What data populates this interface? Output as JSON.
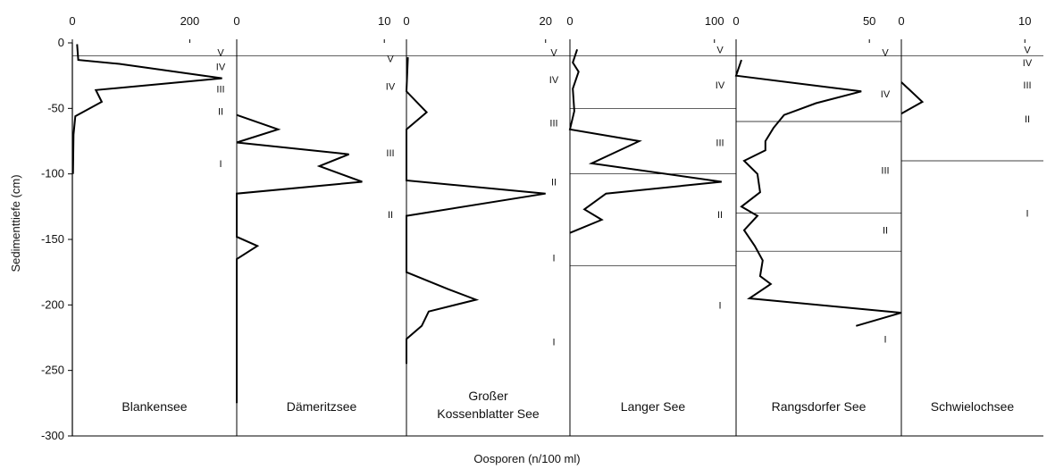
{
  "chart_data": {
    "type": "line",
    "orientation": "depth-profile",
    "xlabel": "Oosporen (n/100 ml)",
    "ylabel": "Sedimenttiefe (cm)",
    "ylim": [
      -300,
      0
    ],
    "yticks": [
      0,
      -50,
      -100,
      -150,
      -200,
      -250,
      -300
    ],
    "grid": false,
    "panels": [
      {
        "name": "Blankensee",
        "xlim": [
          0,
          280
        ],
        "xticks": [
          0,
          200
        ],
        "series": [
          {
            "x": 8,
            "y": -1
          },
          {
            "x": 10,
            "y": -13
          },
          {
            "x": 80,
            "y": -16
          },
          {
            "x": 255,
            "y": -27
          },
          {
            "x": 40,
            "y": -36
          },
          {
            "x": 50,
            "y": -45
          },
          {
            "x": 5,
            "y": -56
          },
          {
            "x": 2,
            "y": -70
          },
          {
            "x": 1,
            "y": -100
          }
        ],
        "boundaries": [
          -10
        ],
        "zones": [
          {
            "label": "V",
            "y": -7
          },
          {
            "label": "IV",
            "y": -18
          },
          {
            "label": "III",
            "y": -35
          },
          {
            "label": "II",
            "y": -52
          },
          {
            "label": "I",
            "y": -92
          }
        ]
      },
      {
        "name": "Dämeritzsee",
        "xlim": [
          0,
          11.5
        ],
        "xticks": [
          0,
          10
        ],
        "series": [
          {
            "x": 0,
            "y": -55
          },
          {
            "x": 2.8,
            "y": -66
          },
          {
            "x": 0,
            "y": -76
          },
          {
            "x": 7.6,
            "y": -85
          },
          {
            "x": 5.6,
            "y": -94
          },
          {
            "x": 8.5,
            "y": -106
          },
          {
            "x": 0,
            "y": -115
          },
          {
            "x": 0,
            "y": -148
          },
          {
            "x": 1.4,
            "y": -155
          },
          {
            "x": 0,
            "y": -165
          },
          {
            "x": 0,
            "y": -275
          }
        ],
        "boundaries": [
          -10
        ],
        "zones": [
          {
            "label": "V",
            "y": -12
          },
          {
            "label": "IV",
            "y": -33
          },
          {
            "label": "III",
            "y": -84
          },
          {
            "label": "II",
            "y": -131
          }
        ]
      },
      {
        "name": "Großer Kossenblatter See",
        "xlim": [
          0,
          23.5
        ],
        "xticks": [
          0,
          20
        ],
        "series": [
          {
            "x": 0.2,
            "y": -11
          },
          {
            "x": 0,
            "y": -37
          },
          {
            "x": 2.9,
            "y": -53
          },
          {
            "x": 0,
            "y": -66
          },
          {
            "x": 0,
            "y": -105
          },
          {
            "x": 20,
            "y": -115
          },
          {
            "x": 0,
            "y": -132
          },
          {
            "x": 0,
            "y": -175
          },
          {
            "x": 6,
            "y": -188
          },
          {
            "x": 10,
            "y": -196
          },
          {
            "x": 3.2,
            "y": -205
          },
          {
            "x": 2.2,
            "y": -216
          },
          {
            "x": 0,
            "y": -226
          },
          {
            "x": 0,
            "y": -245
          }
        ],
        "boundaries": [
          -10
        ],
        "zones": [
          {
            "label": "V",
            "y": -7
          },
          {
            "label": "IV",
            "y": -28
          },
          {
            "label": "III",
            "y": -61
          },
          {
            "label": "II",
            "y": -106
          },
          {
            "label": "I",
            "y": -164
          },
          {
            "label": "I",
            "y": -228
          }
        ]
      },
      {
        "name": "Langer See",
        "xlim": [
          0,
          115
        ],
        "xticks": [
          0,
          100
        ],
        "series": [
          {
            "x": 5,
            "y": -5
          },
          {
            "x": 2,
            "y": -15
          },
          {
            "x": 6,
            "y": -22
          },
          {
            "x": 2,
            "y": -35
          },
          {
            "x": 3,
            "y": -52
          },
          {
            "x": 0,
            "y": -66
          },
          {
            "x": 48,
            "y": -75
          },
          {
            "x": 15,
            "y": -92
          },
          {
            "x": 105,
            "y": -106
          },
          {
            "x": 25,
            "y": -115
          },
          {
            "x": 10,
            "y": -127
          },
          {
            "x": 22,
            "y": -135
          },
          {
            "x": 0,
            "y": -145
          }
        ],
        "boundaries": [
          -10,
          -50,
          -100,
          -170
        ],
        "zones": [
          {
            "label": "V",
            "y": -5
          },
          {
            "label": "IV",
            "y": -32
          },
          {
            "label": "III",
            "y": -76
          },
          {
            "label": "II",
            "y": -131
          },
          {
            "label": "I",
            "y": -200
          }
        ]
      },
      {
        "name": "Rangsdorfer See",
        "xlim": [
          0,
          62
        ],
        "xticks": [
          0,
          50
        ],
        "series": [
          {
            "x": 2,
            "y": -13
          },
          {
            "x": 0,
            "y": -25
          },
          {
            "x": 47,
            "y": -37
          },
          {
            "x": 30,
            "y": -46
          },
          {
            "x": 18,
            "y": -55
          },
          {
            "x": 14,
            "y": -65
          },
          {
            "x": 11,
            "y": -75
          },
          {
            "x": 11,
            "y": -82
          },
          {
            "x": 3,
            "y": -90
          },
          {
            "x": 8,
            "y": -100
          },
          {
            "x": 9,
            "y": -114
          },
          {
            "x": 2,
            "y": -125
          },
          {
            "x": 8,
            "y": -132
          },
          {
            "x": 3,
            "y": -143
          },
          {
            "x": 7,
            "y": -155
          },
          {
            "x": 10,
            "y": -166
          },
          {
            "x": 9,
            "y": -178
          },
          {
            "x": 13,
            "y": -184
          },
          {
            "x": 5,
            "y": -195
          },
          {
            "x": 62,
            "y": -206
          },
          {
            "x": 45,
            "y": -216
          }
        ],
        "boundaries": [
          -10,
          -60,
          -130,
          -159
        ],
        "zones": [
          {
            "label": "V",
            "y": -7
          },
          {
            "label": "IV",
            "y": -39
          },
          {
            "label": "III",
            "y": -97
          },
          {
            "label": "II",
            "y": -143
          },
          {
            "label": "I",
            "y": -226
          }
        ]
      },
      {
        "name": "Schwielochsee",
        "xlim": [
          0,
          11.5
        ],
        "xticks": [
          0,
          10
        ],
        "series": [
          {
            "x": 0,
            "y": -30
          },
          {
            "x": 1.7,
            "y": -45
          },
          {
            "x": 0,
            "y": -54
          }
        ],
        "boundaries": [
          -10,
          -90
        ],
        "zones": [
          {
            "label": "V",
            "y": -5
          },
          {
            "label": "IV",
            "y": -15
          },
          {
            "label": "III",
            "y": -32
          },
          {
            "label": "II",
            "y": -58
          },
          {
            "label": "I",
            "y": -130
          }
        ]
      }
    ]
  }
}
